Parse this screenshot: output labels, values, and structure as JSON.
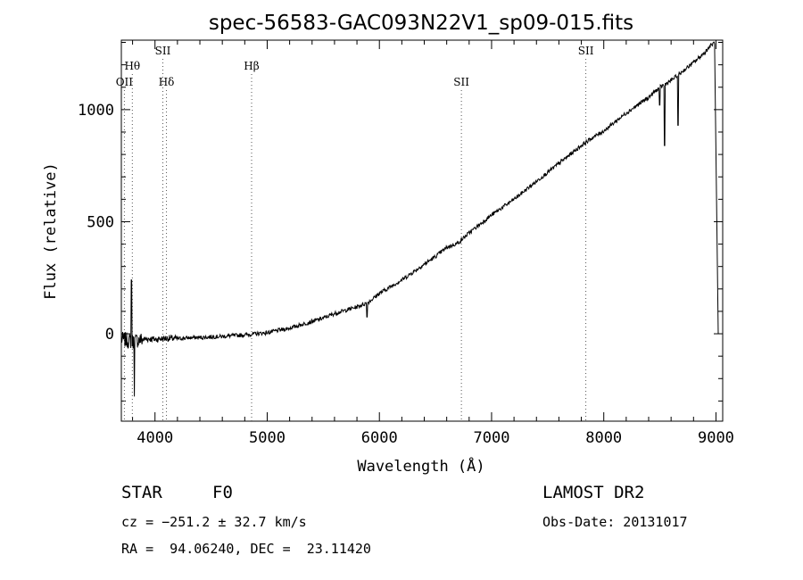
{
  "chart_data": {
    "type": "line",
    "title": "spec-56583-GAC093N22V1_sp09-015.fits",
    "xlabel": "Wavelength (Å)",
    "ylabel": "Flux (relative)",
    "xlim": [
      3700,
      9060
    ],
    "ylim": [
      -390,
      1310
    ],
    "xticks": [
      4000,
      5000,
      6000,
      7000,
      8000,
      9000
    ],
    "yticks": [
      0,
      500,
      1000
    ],
    "grid": false,
    "line_color": "#000000",
    "marker_color": "#555555",
    "series": [
      {
        "x": [
          3700,
          3760,
          3800,
          3850,
          3900,
          3950,
          4000,
          4100,
          4200,
          4300,
          4400,
          4500,
          4600,
          4700,
          4800,
          4900,
          5000,
          5100,
          5200,
          5300,
          5400,
          5500,
          5600,
          5700,
          5800,
          5900,
          6000,
          6100,
          6200,
          6300,
          6400,
          6500,
          6600,
          6700,
          6800,
          6900,
          7000,
          7100,
          7200,
          7300,
          7400,
          7500,
          7600,
          7700,
          7800,
          7900,
          8000,
          8100,
          8200,
          8300,
          8400,
          8500,
          8600,
          8700,
          8800,
          8900,
          8950,
          8990
        ],
        "y": [
          -25,
          -30,
          -35,
          -28,
          -25,
          -22,
          -25,
          -20,
          -22,
          -18,
          -17,
          -14,
          -12,
          -8,
          -5,
          0,
          5,
          15,
          25,
          40,
          55,
          70,
          90,
          105,
          120,
          140,
          180,
          210,
          240,
          275,
          310,
          345,
          385,
          405,
          450,
          490,
          530,
          565,
          600,
          640,
          680,
          720,
          760,
          800,
          840,
          875,
          905,
          945,
          985,
          1020,
          1055,
          1100,
          1130,
          1170,
          1210,
          1255,
          1285,
          1300
        ]
      }
    ],
    "absorption_dips": [
      {
        "x": 3815,
        "y": -280
      },
      {
        "x": 3790,
        "y": 240
      },
      {
        "x": 5890,
        "y": 75
      },
      {
        "x": 8498,
        "y": 1020
      },
      {
        "x": 8542,
        "y": 840
      },
      {
        "x": 8662,
        "y": 930
      }
    ],
    "lines": [
      {
        "label": "OII",
        "x": 3727,
        "level": 1
      },
      {
        "label": "Hθ",
        "x": 3798,
        "level": 2
      },
      {
        "label": "SII",
        "x": 4070,
        "level": 3
      },
      {
        "label": "Hδ",
        "x": 4102,
        "level": 1
      },
      {
        "label": "Hβ",
        "x": 4861,
        "level": 2
      },
      {
        "label": "SII",
        "x": 6731,
        "level": 1
      },
      {
        "label": "SII",
        "x": 7840,
        "level": 3
      }
    ]
  },
  "info": {
    "object_class": "STAR",
    "subclass": "F0",
    "redshift": "cz = −251.2 ± 32.7 km/s",
    "coords": "RA =  94.06240, DEC =  23.11420",
    "survey": "LAMOST DR2",
    "obs_date": "Obs-Date: 20131017"
  }
}
